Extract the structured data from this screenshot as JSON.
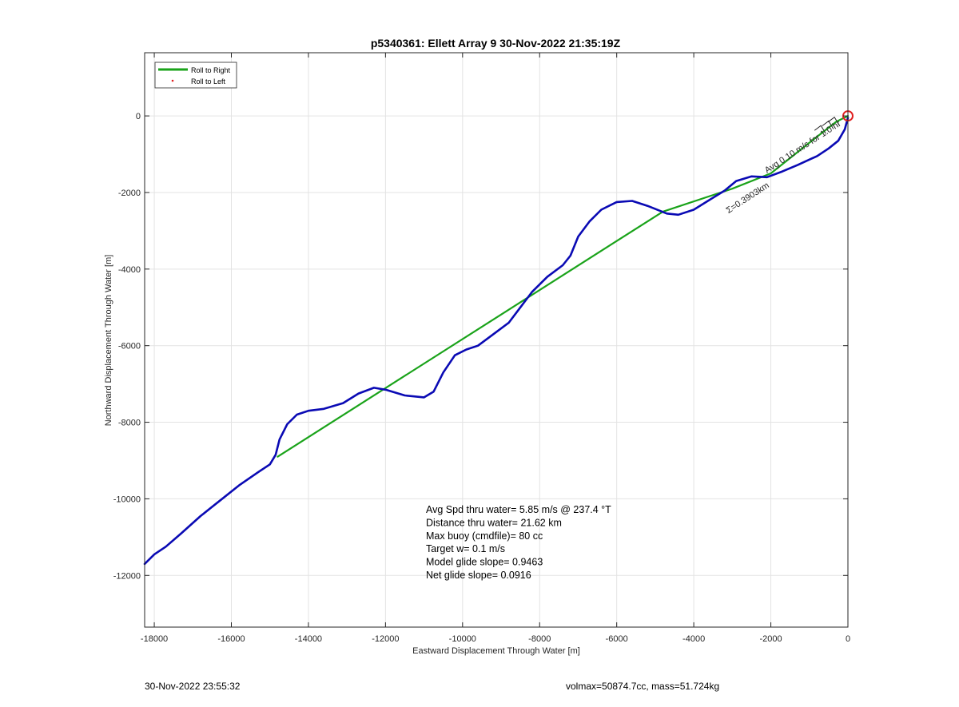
{
  "chart_data": {
    "type": "line",
    "title": "p5340361: Ellett Array 9 30-Nov-2022 21:35:19Z",
    "xlabel": "Eastward Displacement Through Water [m]",
    "ylabel": "Northward Displacement Through Water [m]",
    "xlim": [
      -18250,
      0
    ],
    "ylim": [
      -13350,
      1650
    ],
    "xticks": [
      -18000,
      -16000,
      -14000,
      -12000,
      -10000,
      -8000,
      -6000,
      -4000,
      -2000,
      0
    ],
    "yticks": [
      0,
      -2000,
      -4000,
      -6000,
      -8000,
      -10000,
      -12000
    ],
    "grid": true,
    "legend_placement": "top-left",
    "legend": [
      {
        "label": "Roll to Right",
        "color": "#1aa31a",
        "style": "line"
      },
      {
        "label": "Roll to Left",
        "color": "#e02020",
        "style": "dot"
      }
    ],
    "series": [
      {
        "name": "Roll to Right",
        "color": "#1aa31a",
        "points": [
          [
            -14800,
            -8900
          ],
          [
            -4800,
            -2500
          ],
          [
            -3000,
            -1900
          ],
          [
            -2000,
            -1500
          ],
          [
            -1000,
            -700
          ],
          [
            -300,
            -150
          ],
          [
            0,
            0
          ]
        ]
      },
      {
        "color": "#0a0ab4",
        "points": [
          [
            -18250,
            -11700
          ],
          [
            -18000,
            -11450
          ],
          [
            -17700,
            -11250
          ],
          [
            -17300,
            -10900
          ],
          [
            -16800,
            -10450
          ],
          [
            -16300,
            -10050
          ],
          [
            -15800,
            -9650
          ],
          [
            -15300,
            -9300
          ],
          [
            -15000,
            -9100
          ],
          [
            -14850,
            -8850
          ],
          [
            -14750,
            -8450
          ],
          [
            -14550,
            -8050
          ],
          [
            -14300,
            -7800
          ],
          [
            -14000,
            -7700
          ],
          [
            -13600,
            -7650
          ],
          [
            -13100,
            -7500
          ],
          [
            -12700,
            -7250
          ],
          [
            -12300,
            -7100
          ],
          [
            -12000,
            -7150
          ],
          [
            -11500,
            -7300
          ],
          [
            -11000,
            -7350
          ],
          [
            -10750,
            -7200
          ],
          [
            -10500,
            -6700
          ],
          [
            -10200,
            -6250
          ],
          [
            -9900,
            -6100
          ],
          [
            -9600,
            -6000
          ],
          [
            -9200,
            -5700
          ],
          [
            -8800,
            -5400
          ],
          [
            -8500,
            -5000
          ],
          [
            -8200,
            -4600
          ],
          [
            -7800,
            -4200
          ],
          [
            -7400,
            -3900
          ],
          [
            -7200,
            -3650
          ],
          [
            -7000,
            -3150
          ],
          [
            -6700,
            -2750
          ],
          [
            -6400,
            -2450
          ],
          [
            -6000,
            -2250
          ],
          [
            -5600,
            -2220
          ],
          [
            -5200,
            -2350
          ],
          [
            -4700,
            -2550
          ],
          [
            -4400,
            -2580
          ],
          [
            -4000,
            -2450
          ],
          [
            -3600,
            -2200
          ],
          [
            -3200,
            -1950
          ],
          [
            -2900,
            -1700
          ],
          [
            -2500,
            -1580
          ],
          [
            -2100,
            -1600
          ],
          [
            -1700,
            -1450
          ],
          [
            -1300,
            -1280
          ],
          [
            -800,
            -1050
          ],
          [
            -500,
            -850
          ],
          [
            -250,
            -650
          ],
          [
            -80,
            -350
          ],
          [
            0,
            -50
          ]
        ]
      }
    ],
    "markers": [
      {
        "type": "circle",
        "x": 0,
        "y": 0,
        "color": "#e02020"
      }
    ],
    "annotations": [
      {
        "text": "Σ=0.3903km",
        "x": -3100,
        "y": -2550,
        "angle_deg": -33,
        "color": "#000000"
      },
      {
        "text": "Avg 0.10 m/s for 1.0 hr",
        "x": -2100,
        "y": -1500,
        "angle_deg": -33,
        "color": "#0a6b0a"
      }
    ],
    "stats": [
      "Avg Spd thru water=  5.85 m/s @ 237.4 °T",
      "Distance thru water= 21.62 km",
      "Max buoy (cmdfile)= 80 cc",
      "Target w= 0.1 m/s",
      "Model glide slope= 0.9463",
      "Net glide slope= 0.0916"
    ]
  },
  "footer": {
    "left": "30-Nov-2022 23:55:32",
    "right": "volmax=50874.7cc, mass=51.724kg"
  }
}
